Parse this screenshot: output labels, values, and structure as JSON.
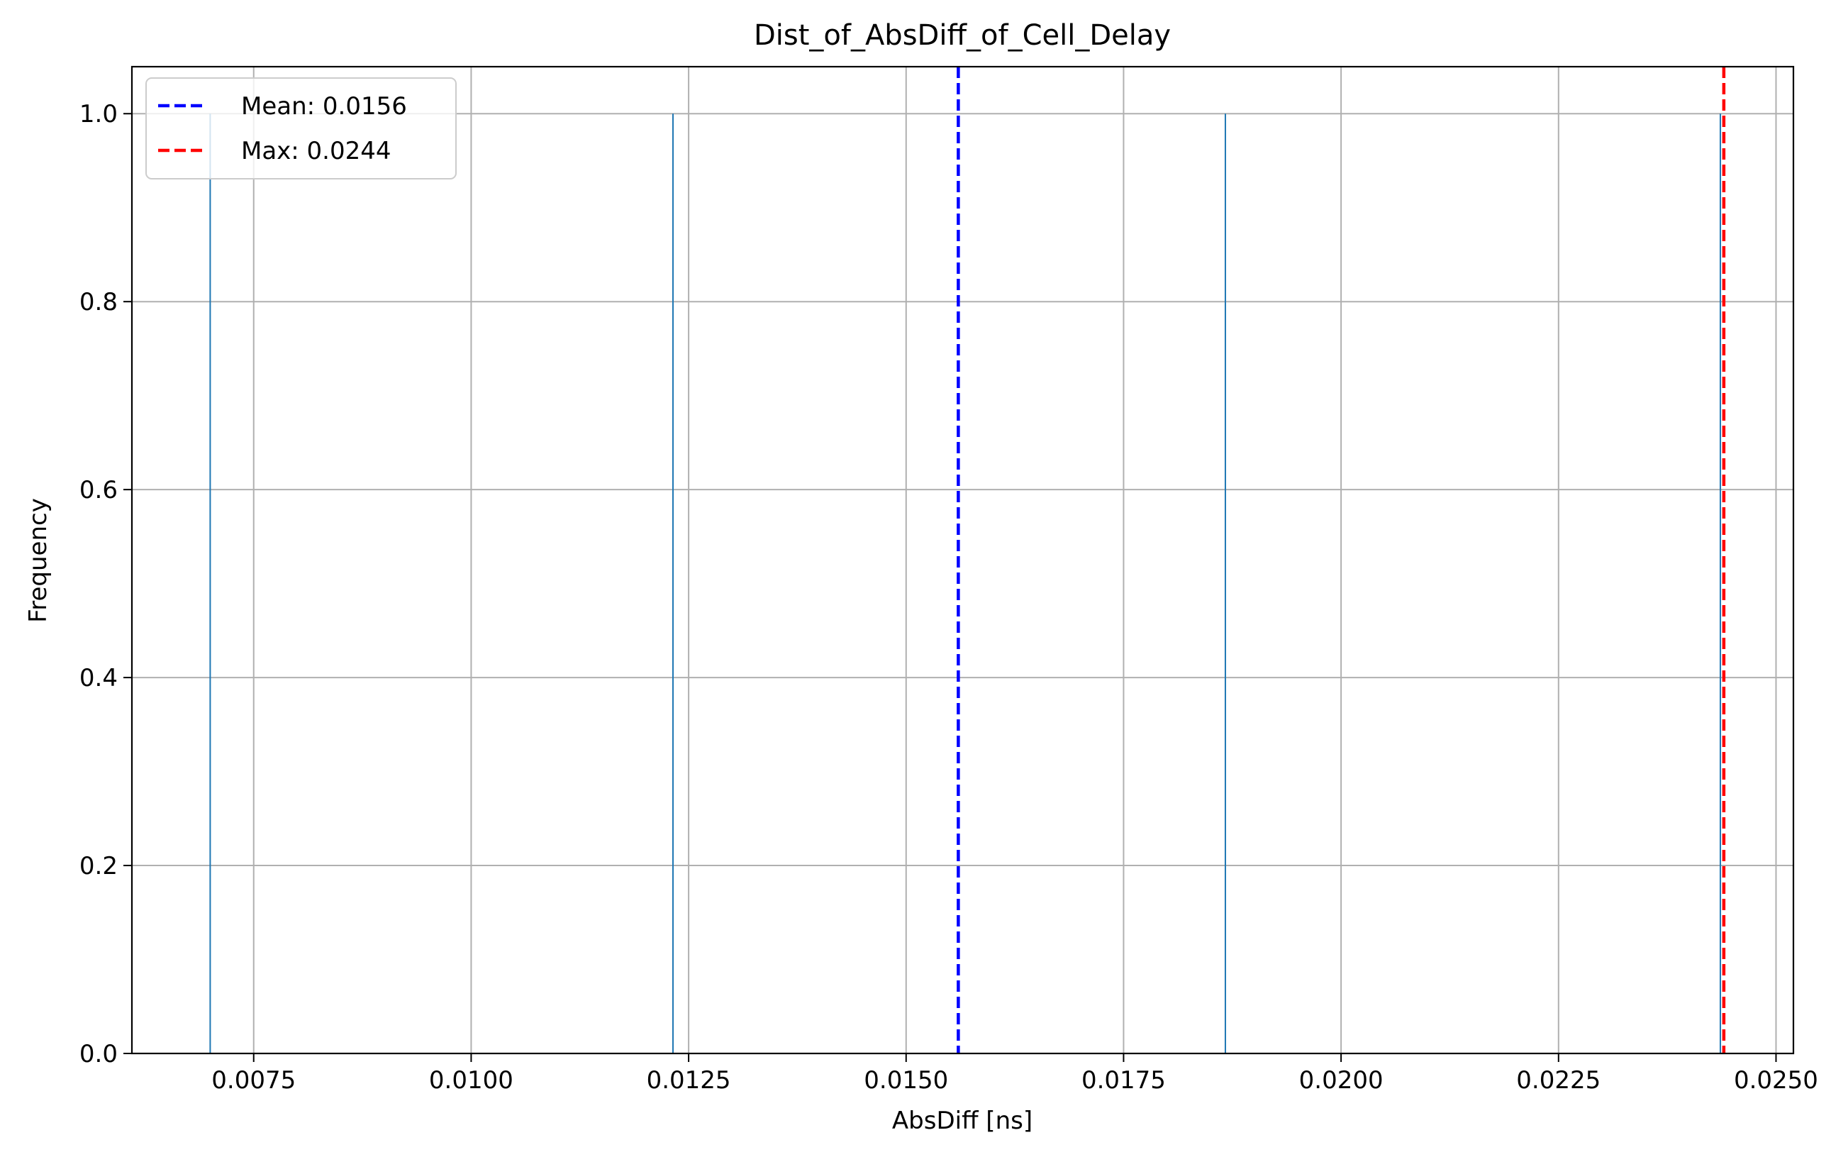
{
  "chart_data": {
    "type": "bar",
    "title": "Dist_of_AbsDiff_of_Cell_Delay",
    "xlabel": "AbsDiff [ns]",
    "ylabel": "Frequency",
    "xlim": [
      0.0061,
      0.0252
    ],
    "ylim": [
      0.0,
      1.05
    ],
    "xticks": [
      0.0075,
      0.01,
      0.0125,
      0.015,
      0.0175,
      0.02,
      0.0225,
      0.025
    ],
    "xtick_labels": [
      "0.0075",
      "0.0100",
      "0.0125",
      "0.0150",
      "0.0175",
      "0.0200",
      "0.0225",
      "0.0250"
    ],
    "yticks": [
      0.0,
      0.2,
      0.4,
      0.6,
      0.8,
      1.0
    ],
    "ytick_labels": [
      "0.0",
      "0.2",
      "0.4",
      "0.6",
      "0.8",
      "1.0"
    ],
    "grid": true,
    "bars": [
      {
        "x": 0.007,
        "value": 1
      },
      {
        "x": 0.01232,
        "value": 1
      },
      {
        "x": 0.01867,
        "value": 1
      },
      {
        "x": 0.02436,
        "value": 1
      }
    ],
    "bar_color": "#1f77b4",
    "reference_lines": [
      {
        "label": "Mean: 0.0156",
        "x": 0.0156,
        "color": "#0000ff",
        "style": "dashed"
      },
      {
        "label": "Max: 0.0244",
        "x": 0.0244,
        "color": "#ff0000",
        "style": "dashed"
      }
    ],
    "legend_position": "top-left"
  }
}
